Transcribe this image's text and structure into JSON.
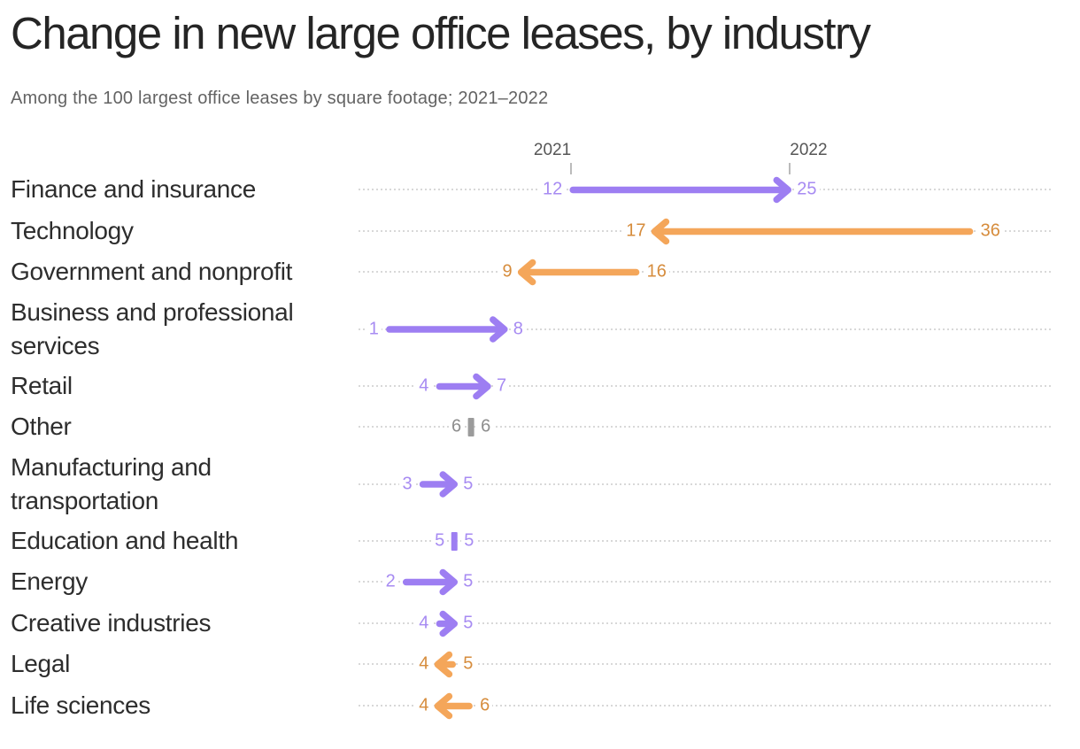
{
  "header": {
    "title": "Change in new large office leases, by industry",
    "subtitle": "Among the 100 largest office leases by square footage; 2021–2022"
  },
  "axis": {
    "left_year": "2021",
    "right_year": "2022"
  },
  "colors": {
    "purple": "#9d7ef2",
    "purple_text": "#a78bf2",
    "orange": "#f4a65a",
    "orange_text": "#d68c3c",
    "gray": "#9b9b9b",
    "gray_text": "#8d8d8d",
    "dotted_line": "#d8d8d8",
    "tick": "#bbbbbb"
  },
  "chart_data": {
    "type": "arrow",
    "title": "Change in new large office leases, by industry",
    "subtitle": "Among the 100 largest office leases by square footage; 2021–2022",
    "x_years": [
      "2021",
      "2022"
    ],
    "value_range": [
      0,
      36
    ],
    "grid": "dotted-row-leaders",
    "legend": "none",
    "rows": [
      {
        "label": "Finance and insurance",
        "y2021": 12,
        "y2022": 25,
        "palette": "purple"
      },
      {
        "label": "Technology",
        "y2021": 36,
        "y2022": 17,
        "palette": "orange"
      },
      {
        "label": "Government and nonprofit",
        "y2021": 16,
        "y2022": 9,
        "palette": "orange"
      },
      {
        "label": "Business and professional services",
        "y2021": 1,
        "y2022": 8,
        "palette": "purple"
      },
      {
        "label": "Retail",
        "y2021": 4,
        "y2022": 7,
        "palette": "purple"
      },
      {
        "label": "Other",
        "y2021": 6,
        "y2022": 6,
        "palette": "gray"
      },
      {
        "label": "Manufacturing and transportation",
        "y2021": 3,
        "y2022": 5,
        "palette": "purple"
      },
      {
        "label": "Education and health",
        "y2021": 5,
        "y2022": 5,
        "palette": "purple"
      },
      {
        "label": "Energy",
        "y2021": 2,
        "y2022": 5,
        "palette": "purple"
      },
      {
        "label": "Creative industries",
        "y2021": 4,
        "y2022": 5,
        "palette": "purple"
      },
      {
        "label": "Legal",
        "y2021": 5,
        "y2022": 4,
        "palette": "orange"
      },
      {
        "label": "Life sciences",
        "y2021": 6,
        "y2022": 4,
        "palette": "orange"
      }
    ]
  }
}
